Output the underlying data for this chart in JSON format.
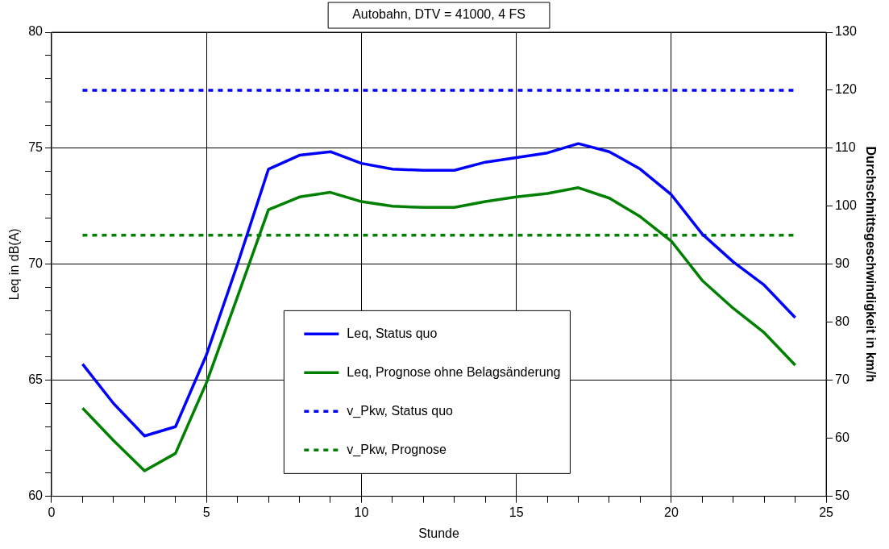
{
  "chart_data": {
    "type": "line",
    "title": "Autobahn, DTV = 41000, 4 FS",
    "xlabel": "Stunde",
    "ylabel": "Leq in dB(A)",
    "y2label": "Durchschnittsgeschwindigkeit in km/h",
    "x": [
      1,
      2,
      3,
      4,
      5,
      6,
      7,
      8,
      9,
      10,
      11,
      12,
      13,
      14,
      15,
      16,
      17,
      18,
      19,
      20,
      21,
      22,
      23,
      24
    ],
    "series": [
      {
        "name": "Leq, Status quo",
        "color": "#0000ff",
        "line_style": "solid",
        "values": [
          65.7,
          64.0,
          62.6,
          63.0,
          66.1,
          70.0,
          74.1,
          74.7,
          74.85,
          74.35,
          74.1,
          74.05,
          74.05,
          74.4,
          74.6,
          74.8,
          75.2,
          74.85,
          74.1,
          73.0,
          71.3,
          70.1,
          69.1,
          67.7
        ]
      },
      {
        "name": "Leq, Prognose ohne Belagsänderung",
        "color": "#008000",
        "line_style": "solid",
        "values": [
          63.8,
          62.4,
          61.1,
          61.85,
          64.9,
          68.6,
          72.35,
          72.9,
          73.1,
          72.7,
          72.5,
          72.45,
          72.45,
          72.7,
          72.9,
          73.05,
          73.3,
          72.85,
          72.05,
          71.0,
          69.3,
          68.1,
          67.05,
          65.65
        ]
      },
      {
        "name": "v_Pkw, Status quo",
        "color": "#0000ff",
        "line_style": "dotted",
        "axis": "y2",
        "values": [
          120,
          120,
          120,
          120,
          120,
          120,
          120,
          120,
          120,
          120,
          120,
          120,
          120,
          120,
          120,
          120,
          120,
          120,
          120,
          120,
          120,
          120,
          120,
          120
        ]
      },
      {
        "name": "v_Pkw, Prognose",
        "color": "#008000",
        "line_style": "dotted",
        "axis": "y2",
        "values": [
          95,
          95,
          95,
          95,
          95,
          95,
          95,
          95,
          95,
          95,
          95,
          95,
          95,
          95,
          95,
          95,
          95,
          95,
          95,
          95,
          95,
          95,
          95,
          95
        ]
      }
    ],
    "xlim": [
      0,
      25
    ],
    "xticks": [
      0,
      {
        "value": 1,
        "label": null
      },
      {
        "value": 2,
        "label": null
      },
      {
        "value": 3,
        "label": null
      },
      {
        "value": 4,
        "label": null
      },
      5,
      {
        "value": 6,
        "label": null
      },
      {
        "value": 7,
        "label": null
      },
      {
        "value": 8,
        "label": null
      },
      {
        "value": 9,
        "label": null
      },
      10,
      {
        "value": 11,
        "label": null
      },
      {
        "value": 12,
        "label": null
      },
      {
        "value": 13,
        "label": null
      },
      {
        "value": 14,
        "label": null
      },
      15,
      {
        "value": 16,
        "label": null
      },
      {
        "value": 17,
        "label": null
      },
      {
        "value": 18,
        "label": null
      },
      {
        "value": 19,
        "label": null
      },
      20,
      {
        "value": 21,
        "label": null
      },
      {
        "value": 22,
        "label": null
      },
      {
        "value": 23,
        "label": null
      },
      {
        "value": 24,
        "label": null
      },
      25
    ],
    "ylim": [
      60,
      80
    ],
    "yticks": [
      60,
      {
        "value": 61,
        "label": null
      },
      {
        "value": 62,
        "label": null
      },
      {
        "value": 63,
        "label": null
      },
      {
        "value": 64,
        "label": null
      },
      65,
      {
        "value": 66,
        "label": null
      },
      {
        "value": 67,
        "label": null
      },
      {
        "value": 68,
        "label": null
      },
      {
        "value": 69,
        "label": null
      },
      70,
      {
        "value": 71,
        "label": null
      },
      {
        "value": 72,
        "label": null
      },
      {
        "value": 73,
        "label": null
      },
      {
        "value": 74,
        "label": null
      },
      75,
      {
        "value": 76,
        "label": null
      },
      {
        "value": 77,
        "label": null
      },
      {
        "value": 78,
        "label": null
      },
      {
        "value": 79,
        "label": null
      },
      80
    ],
    "y2lim": [
      50,
      130
    ],
    "y2ticks": [
      50,
      60,
      70,
      80,
      90,
      100,
      110,
      120,
      130
    ],
    "grid": true,
    "legend": "bottom",
    "marker": "none"
  }
}
